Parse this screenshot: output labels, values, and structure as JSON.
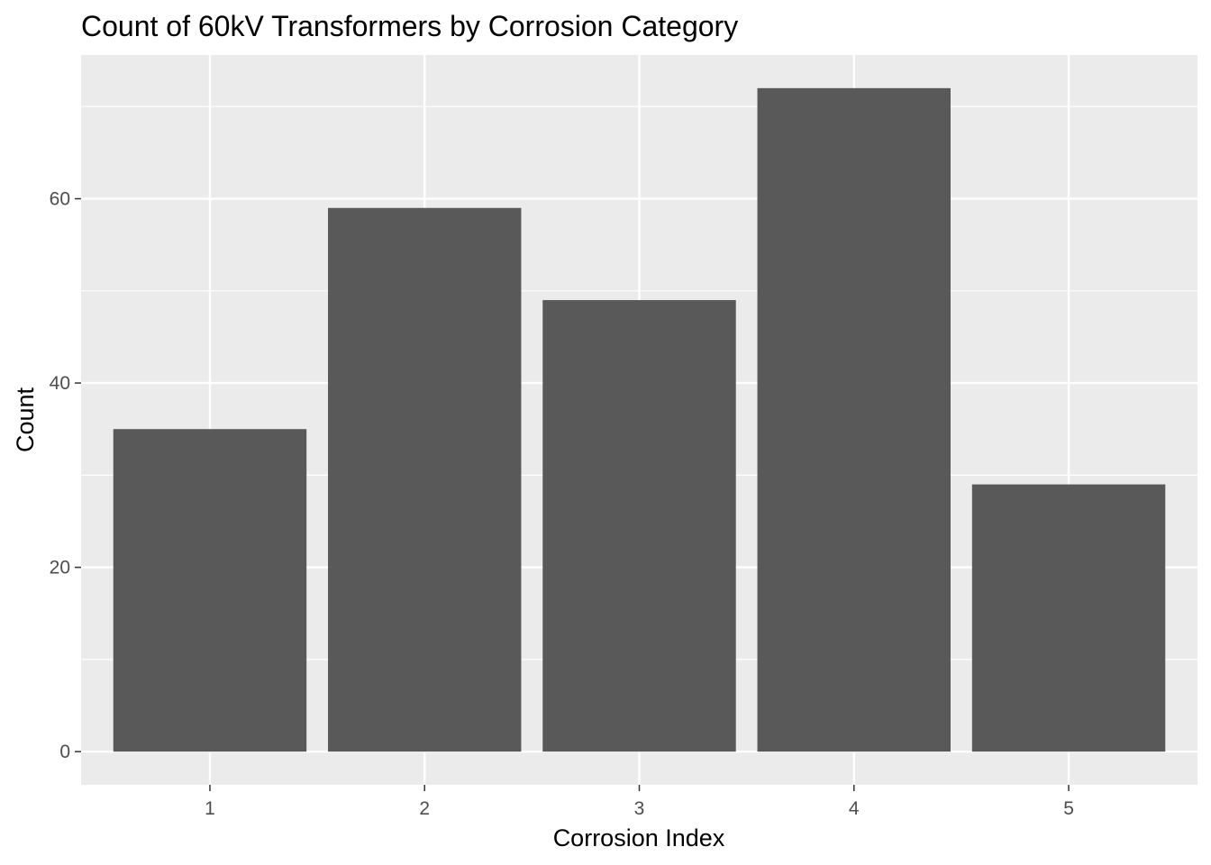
{
  "chart_data": {
    "type": "bar",
    "title": "Count of 60kV Transformers by Corrosion Category",
    "xlabel": "Corrosion Index",
    "ylabel": "Count",
    "categories": [
      "1",
      "2",
      "3",
      "4",
      "5"
    ],
    "values": [
      35,
      59,
      49,
      72,
      29
    ],
    "yticks": [
      0,
      20,
      40,
      60
    ],
    "ylim": [
      -3.6,
      75.6
    ],
    "grid": true,
    "legend": "none",
    "colors": {
      "bar": "#595959",
      "panel_background": "#EBEBEB",
      "grid_line": "#FFFFFF",
      "tick_label": "#4D4D4D",
      "tick_mark": "#333333",
      "text": "#000000"
    }
  }
}
